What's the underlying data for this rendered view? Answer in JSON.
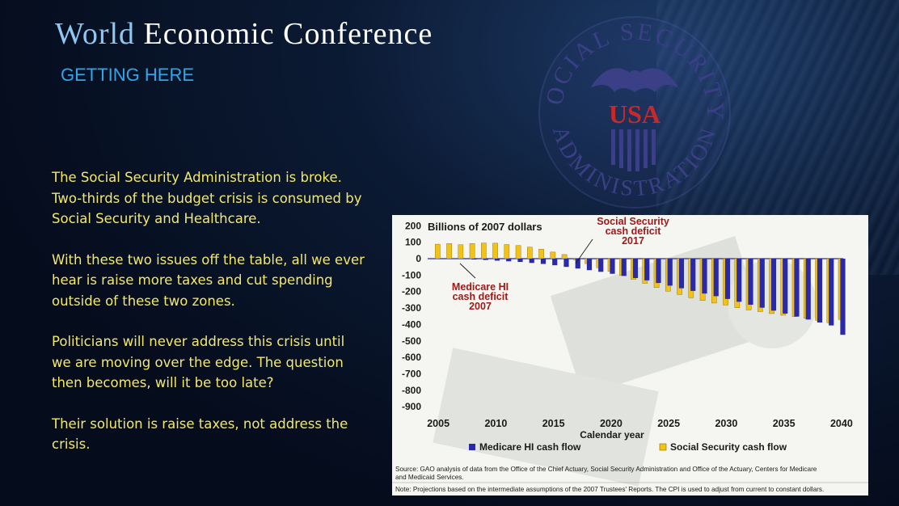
{
  "header": {
    "title_word1": "World",
    "title_rest": "Economic Conference",
    "subtitle": "GETTING HERE"
  },
  "paragraphs": [
    "The Social Security Administration is broke. Two-thirds of the budget crisis is consumed by Social Security and Healthcare.",
    "With these two issues off the table, all we ever hear is raise more taxes and cut spending outside of these two zones.",
    "Politicians will never address this crisis until we are moving over the edge. The question then becomes, will it be too late?",
    "Their solution is raise taxes, not address the crisis."
  ],
  "seal": {
    "top_text": "SOCIAL SECURITY",
    "bottom_text": "ADMINISTRATION",
    "center_text": "USA"
  },
  "chart_data": {
    "type": "bar",
    "ylabel": "Billions of 2007 dollars",
    "xlabel": "Calendar year",
    "ylim": [
      -900,
      200
    ],
    "yticks": [
      200,
      100,
      0,
      -100,
      -200,
      -300,
      -400,
      -500,
      -600,
      -700,
      -800,
      -900
    ],
    "xticks": [
      2005,
      2010,
      2015,
      2020,
      2025,
      2030,
      2035,
      2040
    ],
    "x": [
      2005,
      2006,
      2007,
      2008,
      2009,
      2010,
      2011,
      2012,
      2013,
      2014,
      2015,
      2016,
      2017,
      2018,
      2019,
      2020,
      2021,
      2022,
      2023,
      2024,
      2025,
      2026,
      2027,
      2028,
      2029,
      2030,
      2031,
      2032,
      2033,
      2034,
      2035,
      2036,
      2037,
      2038,
      2039,
      2040
    ],
    "series": [
      {
        "name": "Medicare HI cash flow",
        "color": "#2a2aa8",
        "values": [
          0,
          0,
          -1,
          -5,
          -8,
          -12,
          -16,
          -20,
          -26,
          -32,
          -40,
          -50,
          -60,
          -70,
          -80,
          -92,
          -105,
          -118,
          -132,
          -148,
          -164,
          -180,
          -196,
          -212,
          -228,
          -245,
          -262,
          -280,
          -298,
          -316,
          -334,
          -352,
          -370,
          -388,
          -406,
          -463
        ]
      },
      {
        "name": "Social Security cash flow",
        "color": "#f2c216",
        "values": [
          88,
          92,
          85,
          92,
          95,
          94,
          86,
          80,
          70,
          58,
          40,
          25,
          -8,
          -30,
          -55,
          -78,
          -102,
          -126,
          -150,
          -176,
          -198,
          -218,
          -238,
          -254,
          -270,
          -282,
          -298,
          -312,
          -322,
          -334,
          -344,
          -352,
          -362,
          -375,
          -390,
          -370
        ]
      }
    ],
    "legend_position": "bottom",
    "annotations": [
      {
        "lines": [
          "Social Security",
          "cash deficit",
          "2017"
        ],
        "color": "#a01818"
      },
      {
        "lines": [
          "Medicare HI",
          "cash deficit",
          "2007"
        ],
        "color": "#a01818"
      }
    ],
    "source": "Source:  GAO analysis of data from the Office of the Chief Actuary, Social Security Administration and Office of the Actuary, Centers for Medicare and Medicaid Services.",
    "note": "Note:  Projections based on the intermediate assumptions of the 2007 Trustees' Reports. The CPI is used to adjust from current to constant dollars."
  }
}
